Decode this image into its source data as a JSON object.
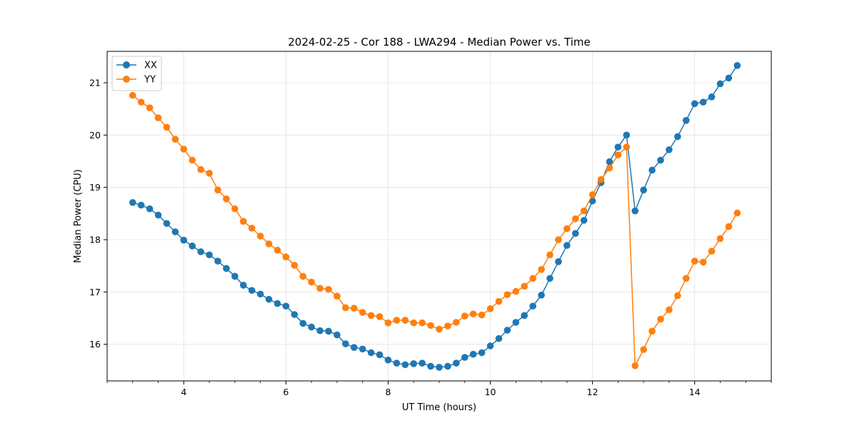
{
  "chart_data": {
    "type": "line",
    "title": "2024-02-25 - Cor 188 - LWA294 - Median Power vs. Time",
    "xlabel": "UT Time (hours)",
    "ylabel": "Median Power (CPU)",
    "xlim": [
      2.5,
      15.5
    ],
    "ylim": [
      15.3,
      21.6
    ],
    "xticks": [
      4,
      6,
      8,
      10,
      12,
      14
    ],
    "xticks_minor_step": 0.5,
    "yticks": [
      16,
      17,
      18,
      19,
      20,
      21
    ],
    "grid": true,
    "legend_position": "top-left",
    "series": [
      {
        "name": "XX",
        "color": "#1f77b4",
        "x": [
          3.0,
          3.1667,
          3.3333,
          3.5,
          3.6667,
          3.8333,
          4.0,
          4.1667,
          4.3333,
          4.5,
          4.6667,
          4.8333,
          5.0,
          5.1667,
          5.3333,
          5.5,
          5.6667,
          5.8333,
          6.0,
          6.1667,
          6.3333,
          6.5,
          6.6667,
          6.8333,
          7.0,
          7.1667,
          7.3333,
          7.5,
          7.6667,
          7.8333,
          8.0,
          8.1667,
          8.3333,
          8.5,
          8.6667,
          8.8333,
          9.0,
          9.1667,
          9.3333,
          9.5,
          9.6667,
          9.8333,
          10.0,
          10.1667,
          10.3333,
          10.5,
          10.6667,
          10.8333,
          11.0,
          11.1667,
          11.3333,
          11.5,
          11.6667,
          11.8333,
          12.0,
          12.1667,
          12.3333,
          12.5,
          12.6667,
          12.8333,
          13.0,
          13.1667,
          13.3333,
          13.5,
          13.6667,
          13.8333,
          14.0,
          14.1667,
          14.3333,
          14.5,
          14.6667,
          14.8333
        ],
        "y": [
          18.71,
          18.66,
          18.59,
          18.47,
          18.31,
          18.15,
          17.99,
          17.88,
          17.77,
          17.71,
          17.59,
          17.45,
          17.3,
          17.13,
          17.03,
          16.96,
          16.86,
          16.78,
          16.73,
          16.57,
          16.4,
          16.33,
          16.26,
          16.25,
          16.18,
          16.01,
          15.94,
          15.91,
          15.84,
          15.8,
          15.7,
          15.64,
          15.61,
          15.63,
          15.64,
          15.58,
          15.56,
          15.58,
          15.64,
          15.75,
          15.81,
          15.84,
          15.97,
          16.11,
          16.27,
          16.42,
          16.55,
          16.73,
          16.94,
          17.26,
          17.58,
          17.89,
          18.12,
          18.37,
          18.74,
          19.09,
          19.49,
          19.77,
          20.0,
          18.55,
          18.95,
          19.33,
          19.52,
          19.72,
          19.97,
          20.28,
          20.6,
          20.63,
          20.73,
          20.98,
          21.09,
          21.33
        ]
      },
      {
        "name": "YY",
        "color": "#ff7f0e",
        "x": [
          3.0,
          3.1667,
          3.3333,
          3.5,
          3.6667,
          3.8333,
          4.0,
          4.1667,
          4.3333,
          4.5,
          4.6667,
          4.8333,
          5.0,
          5.1667,
          5.3333,
          5.5,
          5.6667,
          5.8333,
          6.0,
          6.1667,
          6.3333,
          6.5,
          6.6667,
          6.8333,
          7.0,
          7.1667,
          7.3333,
          7.5,
          7.6667,
          7.8333,
          8.0,
          8.1667,
          8.3333,
          8.5,
          8.6667,
          8.8333,
          9.0,
          9.1667,
          9.3333,
          9.5,
          9.6667,
          9.8333,
          10.0,
          10.1667,
          10.3333,
          10.5,
          10.6667,
          10.8333,
          11.0,
          11.1667,
          11.3333,
          11.5,
          11.6667,
          11.8333,
          12.0,
          12.1667,
          12.3333,
          12.5,
          12.6667,
          12.8333,
          13.0,
          13.1667,
          13.3333,
          13.5,
          13.6667,
          13.8333,
          14.0,
          14.1667,
          14.3333,
          14.5,
          14.6667,
          14.8333
        ],
        "y": [
          20.76,
          20.63,
          20.52,
          20.33,
          20.15,
          19.92,
          19.73,
          19.52,
          19.34,
          19.27,
          18.95,
          18.78,
          18.59,
          18.35,
          18.22,
          18.07,
          17.92,
          17.8,
          17.67,
          17.51,
          17.3,
          17.19,
          17.07,
          17.05,
          16.92,
          16.7,
          16.69,
          16.61,
          16.55,
          16.53,
          16.41,
          16.46,
          16.46,
          16.41,
          16.41,
          16.36,
          16.29,
          16.35,
          16.42,
          16.54,
          16.58,
          16.56,
          16.68,
          16.82,
          16.95,
          17.01,
          17.11,
          17.26,
          17.43,
          17.71,
          18.0,
          18.21,
          18.4,
          18.55,
          18.86,
          19.15,
          19.37,
          19.62,
          19.77,
          15.59,
          15.9,
          16.25,
          16.48,
          16.66,
          16.93,
          17.26,
          17.59,
          17.57,
          17.78,
          18.02,
          18.25,
          18.51
        ]
      }
    ]
  }
}
